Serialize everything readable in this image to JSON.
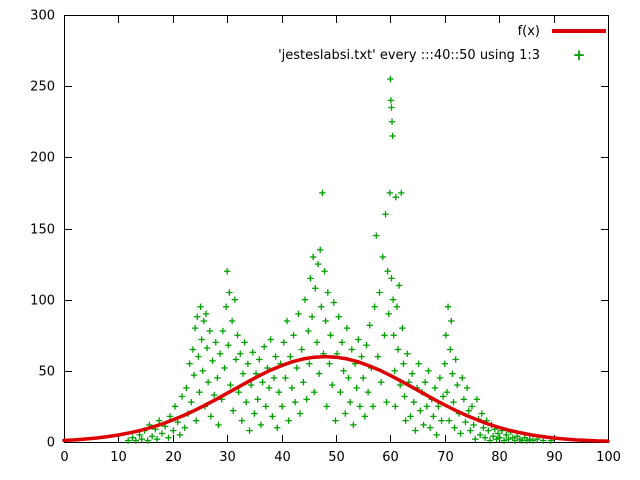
{
  "chart_data": {
    "type": "scatter",
    "title": "",
    "xlabel": "",
    "ylabel": "",
    "xlim": [
      0,
      100
    ],
    "ylim": [
      0,
      300
    ],
    "xticks": [
      0,
      10,
      20,
      30,
      40,
      50,
      60,
      70,
      80,
      90,
      100
    ],
    "yticks": [
      0,
      50,
      100,
      150,
      200,
      250,
      300
    ],
    "grid": false,
    "legend_position": "top-right-inside",
    "series": [
      {
        "name": "f(x)",
        "type": "line",
        "color": "#dd0000",
        "width": 3.5,
        "points": [
          [
            0,
            1.1
          ],
          [
            2,
            1.5
          ],
          [
            4,
            2.1
          ],
          [
            6,
            2.8
          ],
          [
            8,
            3.8
          ],
          [
            10,
            4.9
          ],
          [
            12,
            6.4
          ],
          [
            14,
            8.1
          ],
          [
            16,
            10.2
          ],
          [
            18,
            12.6
          ],
          [
            20,
            15.5
          ],
          [
            22,
            18.6
          ],
          [
            24,
            22.2
          ],
          [
            26,
            26.0
          ],
          [
            28,
            30.0
          ],
          [
            30,
            34.3
          ],
          [
            32,
            38.5
          ],
          [
            34,
            42.7
          ],
          [
            36,
            46.8
          ],
          [
            38,
            50.5
          ],
          [
            40,
            53.7
          ],
          [
            42,
            56.4
          ],
          [
            44,
            58.4
          ],
          [
            46,
            59.6
          ],
          [
            48,
            60.0
          ],
          [
            50,
            59.6
          ],
          [
            52,
            58.4
          ],
          [
            54,
            56.4
          ],
          [
            56,
            53.7
          ],
          [
            58,
            50.5
          ],
          [
            60,
            46.8
          ],
          [
            62,
            42.7
          ],
          [
            64,
            38.5
          ],
          [
            66,
            34.3
          ],
          [
            68,
            30.0
          ],
          [
            70,
            26.0
          ],
          [
            72,
            22.2
          ],
          [
            74,
            18.6
          ],
          [
            76,
            15.5
          ],
          [
            78,
            12.6
          ],
          [
            80,
            10.2
          ],
          [
            82,
            8.1
          ],
          [
            84,
            6.4
          ],
          [
            86,
            4.9
          ],
          [
            88,
            3.8
          ],
          [
            90,
            2.8
          ],
          [
            92,
            2.1
          ],
          [
            94,
            1.5
          ],
          [
            96,
            1.1
          ],
          [
            98,
            0.8
          ],
          [
            100,
            0.6
          ]
        ]
      },
      {
        "name": "'jesteslabsi.txt' every :::40::50 using 1:3",
        "type": "scatter",
        "marker": "plus",
        "color": "#00a000",
        "points": [
          [
            11.8,
            1
          ],
          [
            12.6,
            3
          ],
          [
            13.2,
            1
          ],
          [
            13.9,
            5
          ],
          [
            14.3,
            2
          ],
          [
            14.8,
            8
          ],
          [
            15.4,
            1
          ],
          [
            15.7,
            12
          ],
          [
            16.2,
            4
          ],
          [
            16.8,
            9
          ],
          [
            17.1,
            2
          ],
          [
            17.5,
            15
          ],
          [
            18.0,
            6
          ],
          [
            18.6,
            11
          ],
          [
            19.2,
            3
          ],
          [
            19.5,
            18
          ],
          [
            20.1,
            8
          ],
          [
            20.4,
            25
          ],
          [
            20.9,
            14
          ],
          [
            21.3,
            5
          ],
          [
            21.7,
            32
          ],
          [
            22.2,
            10
          ],
          [
            22.5,
            38
          ],
          [
            22.8,
            20
          ],
          [
            23.1,
            55
          ],
          [
            23.4,
            28
          ],
          [
            23.7,
            65
          ],
          [
            23.9,
            47
          ],
          [
            24.1,
            80
          ],
          [
            24.3,
            15
          ],
          [
            24.5,
            88
          ],
          [
            24.7,
            60
          ],
          [
            24.9,
            35
          ],
          [
            25.1,
            95
          ],
          [
            25.3,
            72
          ],
          [
            25.5,
            50
          ],
          [
            25.7,
            85
          ],
          [
            25.9,
            25
          ],
          [
            26.1,
            90
          ],
          [
            26.3,
            66
          ],
          [
            26.5,
            42
          ],
          [
            26.8,
            78
          ],
          [
            27.0,
            18
          ],
          [
            27.3,
            57
          ],
          [
            27.6,
            33
          ],
          [
            27.9,
            70
          ],
          [
            28.2,
            45
          ],
          [
            28.4,
            12
          ],
          [
            28.7,
            62
          ],
          [
            29.0,
            30
          ],
          [
            29.2,
            78
          ],
          [
            29.5,
            52
          ],
          [
            29.8,
            95
          ],
          [
            30.0,
            120
          ],
          [
            30.2,
            68
          ],
          [
            30.4,
            105
          ],
          [
            30.6,
            40
          ],
          [
            30.9,
            85
          ],
          [
            31.1,
            22
          ],
          [
            31.4,
            100
          ],
          [
            31.6,
            58
          ],
          [
            31.9,
            75
          ],
          [
            32.1,
            35
          ],
          [
            32.4,
            62
          ],
          [
            32.7,
            15
          ],
          [
            32.9,
            48
          ],
          [
            33.2,
            70
          ],
          [
            33.5,
            28
          ],
          [
            33.8,
            55
          ],
          [
            34.1,
            8
          ],
          [
            34.4,
            40
          ],
          [
            34.7,
            63
          ],
          [
            35.0,
            20
          ],
          [
            35.3,
            48
          ],
          [
            35.6,
            30
          ],
          [
            35.9,
            58
          ],
          [
            36.2,
            12
          ],
          [
            36.5,
            42
          ],
          [
            36.8,
            67
          ],
          [
            37.1,
            25
          ],
          [
            37.4,
            52
          ],
          [
            37.7,
            38
          ],
          [
            38.0,
            72
          ],
          [
            38.3,
            18
          ],
          [
            38.6,
            45
          ],
          [
            38.9,
            60
          ],
          [
            39.2,
            10
          ],
          [
            39.5,
            35
          ],
          [
            39.8,
            55
          ],
          [
            40.1,
            25
          ],
          [
            40.4,
            70
          ],
          [
            40.7,
            45
          ],
          [
            41.0,
            85
          ],
          [
            41.3,
            15
          ],
          [
            41.6,
            60
          ],
          [
            41.9,
            38
          ],
          [
            42.2,
            75
          ],
          [
            42.5,
            28
          ],
          [
            42.8,
            52
          ],
          [
            43.1,
            90
          ],
          [
            43.4,
            20
          ],
          [
            43.7,
            65
          ],
          [
            44.0,
            42
          ],
          [
            44.3,
            100
          ],
          [
            44.6,
            30
          ],
          [
            44.9,
            78
          ],
          [
            45.1,
            55
          ],
          [
            45.3,
            115
          ],
          [
            45.6,
            88
          ],
          [
            45.8,
            130
          ],
          [
            46.0,
            35
          ],
          [
            46.2,
            108
          ],
          [
            46.5,
            70
          ],
          [
            46.7,
            125
          ],
          [
            46.9,
            48
          ],
          [
            47.1,
            135
          ],
          [
            47.3,
            95
          ],
          [
            47.5,
            175
          ],
          [
            47.7,
            62
          ],
          [
            47.9,
            120
          ],
          [
            48.1,
            85
          ],
          [
            48.3,
            25
          ],
          [
            48.5,
            105
          ],
          [
            48.8,
            55
          ],
          [
            49.0,
            75
          ],
          [
            49.3,
            40
          ],
          [
            49.6,
            98
          ],
          [
            49.9,
            15
          ],
          [
            50.2,
            62
          ],
          [
            50.5,
            88
          ],
          [
            50.8,
            35
          ],
          [
            51.1,
            70
          ],
          [
            51.4,
            50
          ],
          [
            51.7,
            20
          ],
          [
            52.0,
            80
          ],
          [
            52.3,
            45
          ],
          [
            52.6,
            28
          ],
          [
            52.9,
            65
          ],
          [
            53.2,
            12
          ],
          [
            53.5,
            55
          ],
          [
            53.8,
            38
          ],
          [
            54.1,
            72
          ],
          [
            54.4,
            25
          ],
          [
            54.7,
            60
          ],
          [
            55.0,
            45
          ],
          [
            55.3,
            18
          ],
          [
            55.6,
            68
          ],
          [
            55.9,
            35
          ],
          [
            56.2,
            82
          ],
          [
            56.5,
            52
          ],
          [
            56.8,
            25
          ],
          [
            57.1,
            95
          ],
          [
            57.4,
            145
          ],
          [
            57.7,
            60
          ],
          [
            58.0,
            105
          ],
          [
            58.3,
            42
          ],
          [
            58.6,
            130
          ],
          [
            58.9,
            75
          ],
          [
            59.1,
            160
          ],
          [
            59.3,
            28
          ],
          [
            59.5,
            120
          ],
          [
            59.7,
            90
          ],
          [
            59.9,
            175
          ],
          [
            60.0,
            255
          ],
          [
            60.1,
            240
          ],
          [
            60.2,
            235
          ],
          [
            60.3,
            225
          ],
          [
            60.4,
            215
          ],
          [
            60.2,
            115
          ],
          [
            60.5,
            100
          ],
          [
            60.6,
            75
          ],
          [
            60.8,
            50
          ],
          [
            60.9,
            25
          ],
          [
            61.0,
            172
          ],
          [
            61.2,
            95
          ],
          [
            61.4,
            65
          ],
          [
            61.6,
            110
          ],
          [
            61.8,
            40
          ],
          [
            62.0,
            175
          ],
          [
            62.2,
            80
          ],
          [
            62.4,
            55
          ],
          [
            62.6,
            32
          ],
          [
            62.8,
            15
          ],
          [
            63.1,
            62
          ],
          [
            63.4,
            42
          ],
          [
            63.7,
            18
          ],
          [
            64.0,
            48
          ],
          [
            64.3,
            28
          ],
          [
            64.6,
            8
          ],
          [
            64.9,
            38
          ],
          [
            65.2,
            55
          ],
          [
            65.5,
            22
          ],
          [
            65.8,
            35
          ],
          [
            66.1,
            12
          ],
          [
            66.4,
            42
          ],
          [
            66.7,
            25
          ],
          [
            67.0,
            50
          ],
          [
            67.3,
            10
          ],
          [
            67.6,
            30
          ],
          [
            67.9,
            18
          ],
          [
            68.2,
            38
          ],
          [
            68.5,
            5
          ],
          [
            68.8,
            25
          ],
          [
            69.1,
            45
          ],
          [
            69.4,
            15
          ],
          [
            69.7,
            32
          ],
          [
            70.0,
            55
          ],
          [
            70.2,
            75
          ],
          [
            70.4,
            35
          ],
          [
            70.6,
            95
          ],
          [
            70.8,
            15
          ],
          [
            71.0,
            65
          ],
          [
            71.2,
            85
          ],
          [
            71.4,
            48
          ],
          [
            71.6,
            28
          ],
          [
            71.8,
            10
          ],
          [
            72.0,
            58
          ],
          [
            72.3,
            40
          ],
          [
            72.6,
            20
          ],
          [
            72.9,
            6
          ],
          [
            73.2,
            45
          ],
          [
            73.5,
            30
          ],
          [
            73.8,
            14
          ],
          [
            74.1,
            38
          ],
          [
            74.4,
            22
          ],
          [
            74.7,
            8
          ],
          [
            75.0,
            25
          ],
          [
            75.3,
            12
          ],
          [
            75.6,
            2
          ],
          [
            75.9,
            30
          ],
          [
            76.2,
            16
          ],
          [
            76.5,
            5
          ],
          [
            76.8,
            20
          ],
          [
            77.1,
            10
          ],
          [
            77.4,
            3
          ],
          [
            77.7,
            15
          ],
          [
            78.0,
            8
          ],
          [
            78.3,
            1
          ],
          [
            78.6,
            12
          ],
          [
            78.9,
            4
          ],
          [
            79.2,
            9
          ],
          [
            79.5,
            2
          ],
          [
            79.8,
            6
          ],
          [
            80.1,
            3
          ],
          [
            80.5,
            8
          ],
          [
            80.9,
            1
          ],
          [
            81.3,
            5
          ],
          [
            81.7,
            2
          ],
          [
            82.1,
            7
          ],
          [
            82.5,
            3
          ],
          [
            82.9,
            1
          ],
          [
            83.3,
            4
          ],
          [
            83.8,
            2
          ],
          [
            84.2,
            1
          ],
          [
            84.7,
            3
          ],
          [
            85.1,
            1
          ],
          [
            85.6,
            2
          ],
          [
            86.2,
            1
          ],
          [
            87.0,
            2
          ],
          [
            88.1,
            1
          ],
          [
            89.5,
            1
          ]
        ]
      }
    ]
  }
}
